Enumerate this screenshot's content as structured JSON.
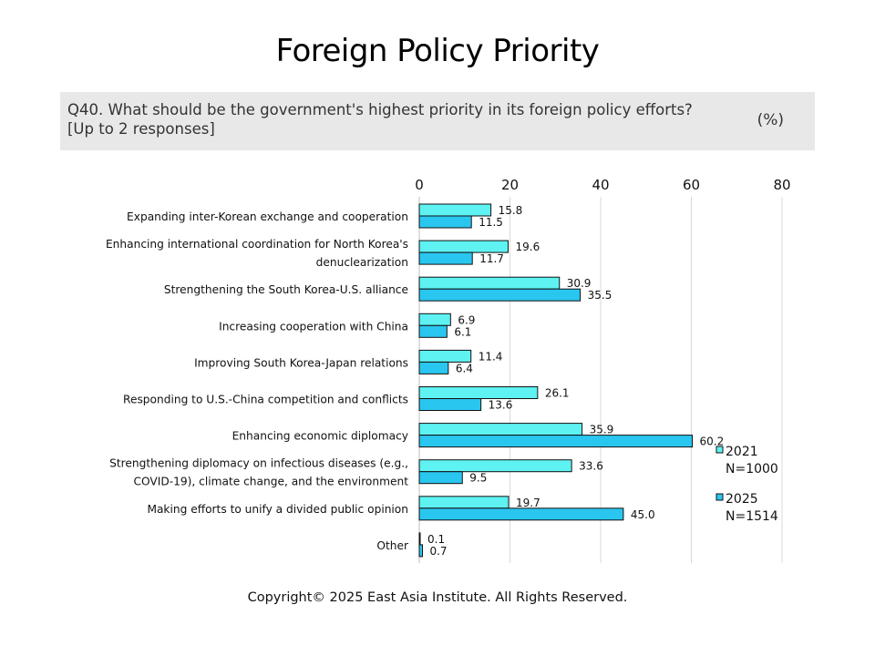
{
  "title": "Foreign Policy Priority",
  "question": {
    "line1": "Q40. What should be the government's highest priority in its foreign policy efforts?",
    "line2": "[Up to 2 responses]",
    "unit": "(%)"
  },
  "chart_data": {
    "type": "bar",
    "orientation": "horizontal",
    "xlim": [
      0,
      80
    ],
    "xticks": [
      "0",
      "20",
      "40",
      "60",
      "80"
    ],
    "grid": true,
    "legend_position": "right",
    "categories": [
      [
        "Expanding inter-Korean exchange and cooperation"
      ],
      [
        "Enhancing international coordination for North Korea's",
        "denuclearization"
      ],
      [
        "Strengthening the South Korea-U.S. alliance"
      ],
      [
        "Increasing cooperation with China"
      ],
      [
        "Improving South Korea-Japan relations"
      ],
      [
        "Responding to U.S.-China competition and conflicts"
      ],
      [
        "Enhancing economic diplomacy"
      ],
      [
        "Strengthening diplomacy on infectious diseases (e.g.,",
        "COVID-19), climate change, and the environment"
      ],
      [
        "Making efforts to unify a divided public opinion"
      ],
      [
        "Other"
      ]
    ],
    "series": [
      {
        "name": "2021",
        "sublabel": "N=1000",
        "color": "#5ef2f2",
        "values": [
          15.8,
          19.6,
          30.9,
          6.9,
          11.4,
          26.1,
          35.9,
          33.6,
          19.7,
          0.1
        ],
        "labels": [
          "15.8",
          "19.6",
          "30.9",
          "6.9",
          "11.4",
          "26.1",
          "35.9",
          "33.6",
          "19.7",
          "0.1"
        ]
      },
      {
        "name": "2025",
        "sublabel": "N=1514",
        "color": "#29c6f0",
        "values": [
          11.5,
          11.7,
          35.5,
          6.1,
          6.4,
          13.6,
          60.2,
          9.5,
          45.0,
          0.7
        ],
        "labels": [
          "11.5",
          "11.7",
          "35.5",
          "6.1",
          "6.4",
          "13.6",
          "60.2",
          "9.5",
          "45.0",
          "0.7"
        ]
      }
    ]
  },
  "footer": "Copyright© 2025 East Asia Institute. All Rights Reserved."
}
